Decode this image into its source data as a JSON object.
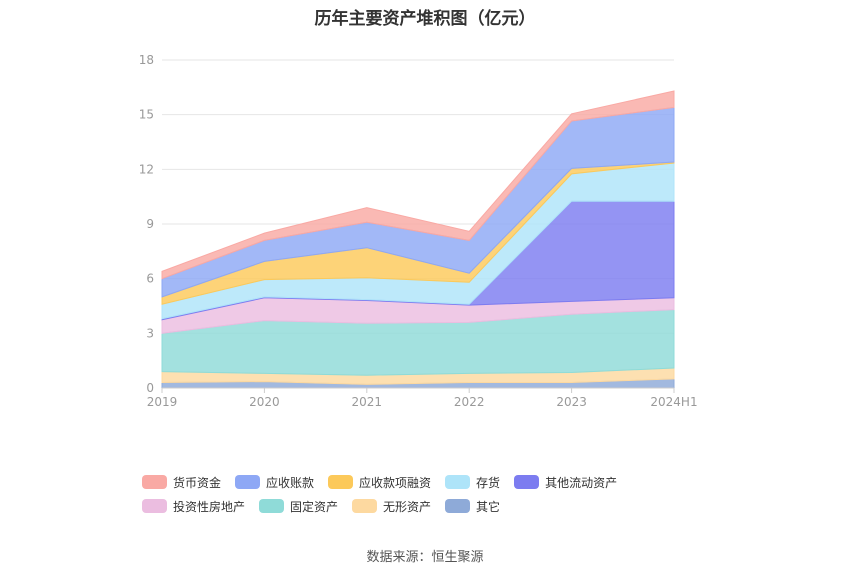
{
  "chart_data": {
    "type": "area",
    "stacked": true,
    "title": "历年主要资产堆积图（亿元）",
    "categories": [
      "2019",
      "2020",
      "2021",
      "2022",
      "2023",
      "2024H1"
    ],
    "ylim": [
      0,
      18
    ],
    "yticks": [
      "0",
      "3",
      "6",
      "9",
      "12",
      "15",
      "18"
    ],
    "grid": true,
    "legend_position": "bottom",
    "series": [
      {
        "name": "其它",
        "color": "#8eaad8",
        "values": [
          0.3,
          0.35,
          0.2,
          0.3,
          0.3,
          0.5
        ]
      },
      {
        "name": "无形资产",
        "color": "#fdd9a0",
        "values": [
          0.6,
          0.45,
          0.5,
          0.5,
          0.55,
          0.6
        ]
      },
      {
        "name": "固定资产",
        "color": "#8fdbd8",
        "values": [
          2.1,
          2.9,
          2.85,
          2.8,
          3.2,
          3.2
        ]
      },
      {
        "name": "投资性房地产",
        "color": "#ebbde0",
        "values": [
          0.75,
          1.25,
          1.25,
          0.95,
          0.7,
          0.65
        ]
      },
      {
        "name": "其他流动资产",
        "color": "#7c7cf0",
        "values": [
          0.05,
          0.05,
          0.05,
          0.05,
          5.5,
          5.3
        ]
      },
      {
        "name": "存货",
        "color": "#aee4f9",
        "values": [
          0.8,
          0.95,
          1.2,
          1.2,
          1.5,
          2.1
        ]
      },
      {
        "name": "应收款项融资",
        "color": "#fcc95a",
        "values": [
          0.4,
          1.0,
          1.65,
          0.5,
          0.3,
          0.05
        ]
      },
      {
        "name": "应收账款",
        "color": "#8ea8f5",
        "values": [
          1.0,
          1.15,
          1.4,
          1.8,
          2.6,
          3.0
        ]
      },
      {
        "name": "货币资金",
        "color": "#f9a9a4",
        "values": [
          0.4,
          0.4,
          0.8,
          0.5,
          0.4,
          0.9
        ]
      }
    ],
    "legend_order": [
      "货币资金",
      "应收账款",
      "应收款项融资",
      "存货",
      "其他流动资产",
      "投资性房地产",
      "固定资产",
      "无形资产",
      "其它"
    ]
  },
  "source_text": "数据来源：恒生聚源"
}
